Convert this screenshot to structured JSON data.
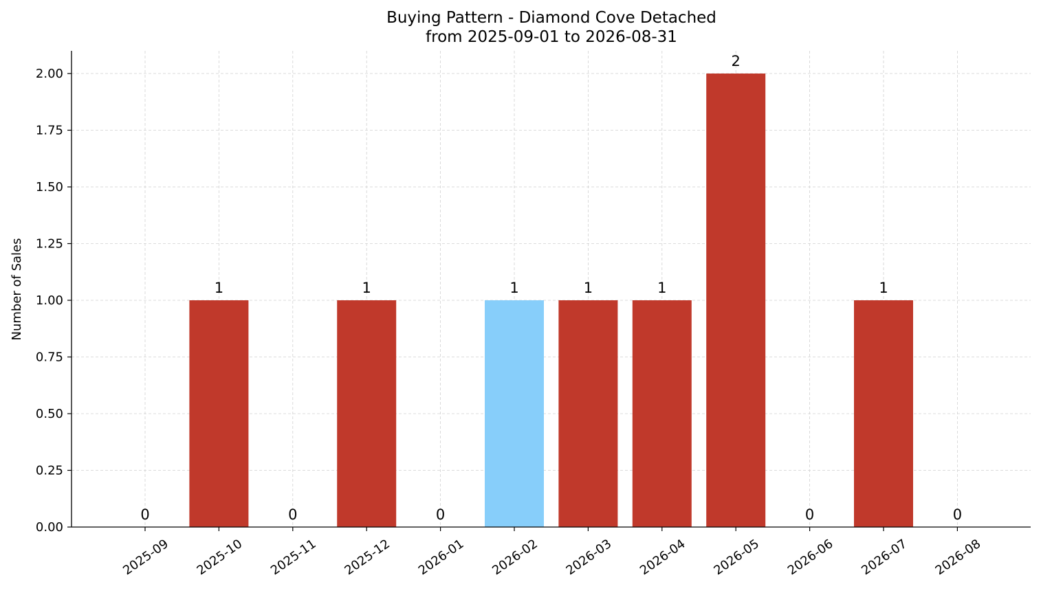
{
  "chart_data": {
    "type": "bar",
    "title": "Buying Pattern - Diamond Cove Detached",
    "subtitle": "from 2025-09-01 to 2026-08-31",
    "xlabel": "",
    "ylabel": "Number of Sales",
    "categories": [
      "2025-09",
      "2025-10",
      "2025-11",
      "2025-12",
      "2026-01",
      "2026-02",
      "2026-03",
      "2026-04",
      "2026-05",
      "2026-06",
      "2026-07",
      "2026-08"
    ],
    "values": [
      0,
      1,
      0,
      1,
      0,
      1,
      1,
      1,
      2,
      0,
      1,
      0
    ],
    "bar_colors": [
      "#c0392b",
      "#c0392b",
      "#c0392b",
      "#c0392b",
      "#c0392b",
      "#87cefa",
      "#c0392b",
      "#c0392b",
      "#c0392b",
      "#c0392b",
      "#c0392b",
      "#c0392b"
    ],
    "data_labels": [
      "0",
      "1",
      "0",
      "1",
      "0",
      "1",
      "1",
      "1",
      "2",
      "0",
      "1",
      "0"
    ],
    "ylim": [
      0,
      2.1
    ],
    "yticks": [
      0,
      0.25,
      0.5,
      0.75,
      1.0,
      1.25,
      1.5,
      1.75,
      2.0
    ],
    "ytick_labels": [
      "0.00",
      "0.25",
      "0.50",
      "0.75",
      "1.00",
      "1.25",
      "1.50",
      "1.75",
      "2.00"
    ],
    "grid": true,
    "legend": "none"
  }
}
